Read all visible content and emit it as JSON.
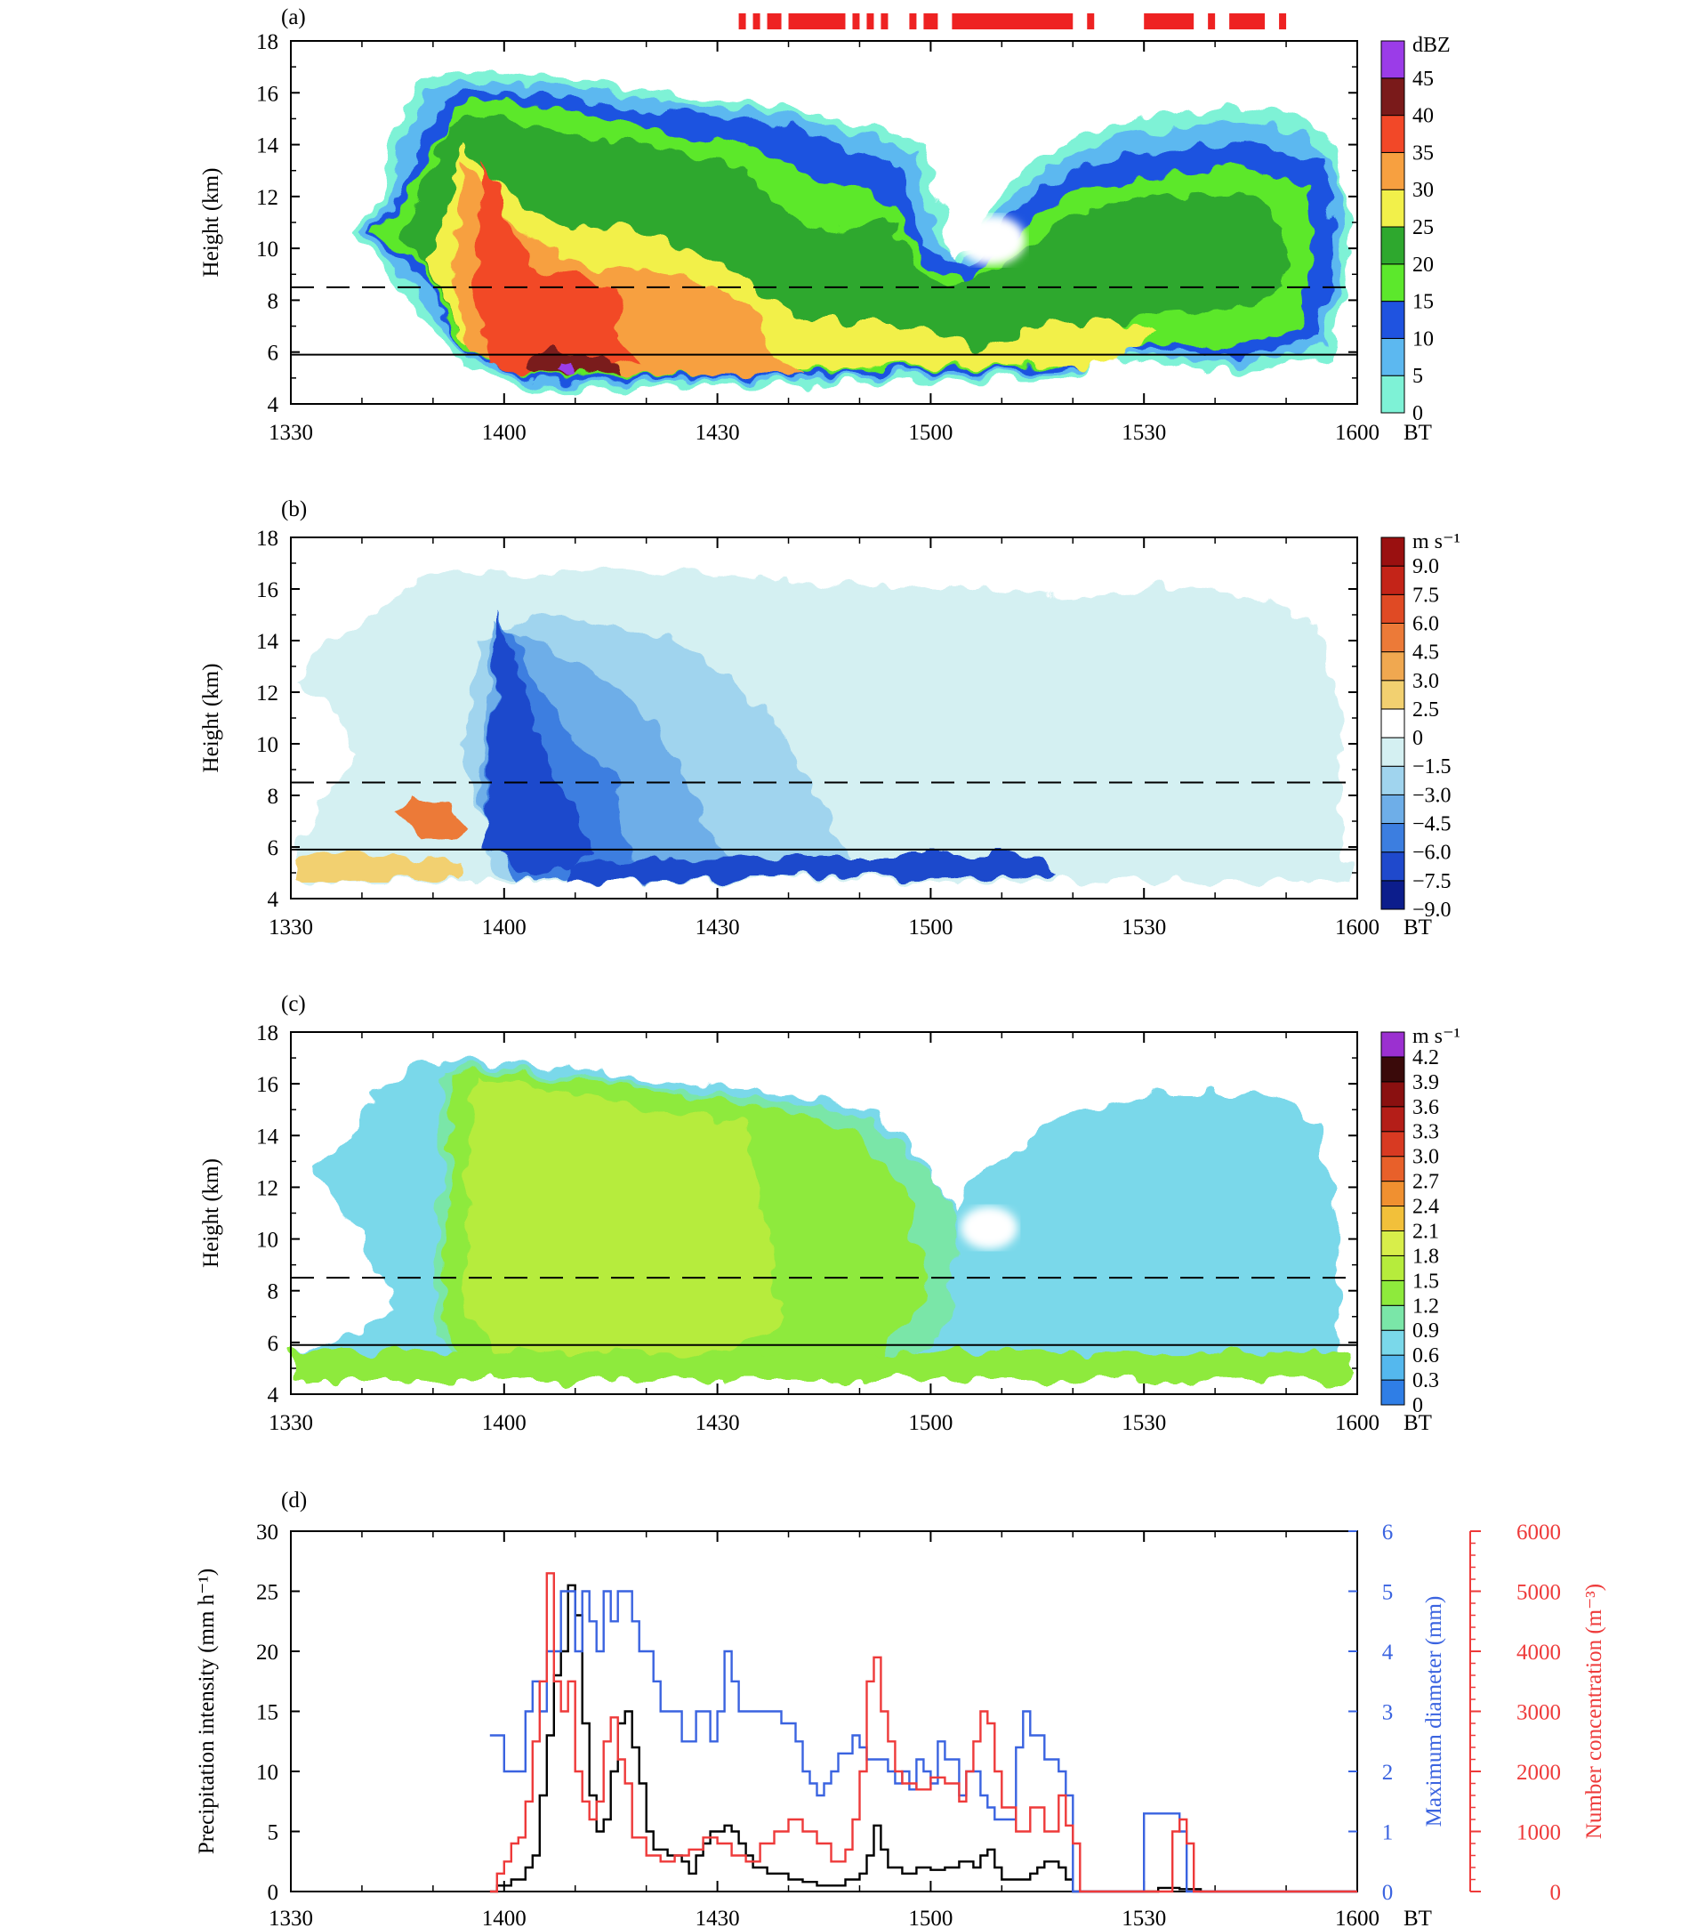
{
  "figure": {
    "time_axis": {
      "ticks": [
        "1330",
        "1400",
        "1430",
        "1500",
        "1530",
        "1600"
      ],
      "tick_minutes": [
        810,
        840,
        870,
        900,
        930,
        960
      ],
      "range_minutes": [
        810,
        960
      ],
      "unit": "BT"
    },
    "height_axis": {
      "label": "Height (km)",
      "ticks": [
        "4",
        "6",
        "8",
        "10",
        "12",
        "14",
        "16",
        "18"
      ],
      "range": [
        4,
        18
      ]
    },
    "reference_lines": {
      "solid_km": 5.9,
      "dashed_km": 8.5
    }
  },
  "chart_data": [
    {
      "panel": "(a)",
      "type": "heatmap",
      "title": "",
      "xlabel": "",
      "ylabel": "Height (km)",
      "xlim": [
        810,
        960
      ],
      "ylim": [
        4,
        18
      ],
      "colorbar_unit": "dBZ",
      "levels": [
        "0",
        "5",
        "10",
        "15",
        "20",
        "25",
        "30",
        "35",
        "40",
        "45"
      ],
      "colors": [
        "#7ef2d6",
        "#5cb8f0",
        "#1f53e0",
        "#5ce82c",
        "#2ea82e",
        "#f2f04a",
        "#f7a040",
        "#f24828",
        "#7a1a1a",
        "#9b3ce8"
      ],
      "precip_bars_minutes": [
        [
          873,
          874
        ],
        [
          875,
          876
        ],
        [
          877,
          879
        ],
        [
          880,
          888
        ],
        [
          889,
          890
        ],
        [
          891,
          892
        ],
        [
          893,
          894
        ],
        [
          897,
          898
        ],
        [
          899,
          901
        ],
        [
          903,
          920
        ],
        [
          922,
          923
        ],
        [
          930,
          937
        ],
        [
          939,
          940
        ],
        [
          942,
          947
        ],
        [
          949,
          950
        ]
      ],
      "precip_bar_color": "#ee2222",
      "core_note": "maximum reflectivity near 1400-1415 BT below 8 km"
    },
    {
      "panel": "(b)",
      "type": "heatmap",
      "title": "",
      "xlabel": "",
      "ylabel": "Height (km)",
      "xlim": [
        810,
        960
      ],
      "ylim": [
        4,
        18
      ],
      "colorbar_unit": "m s⁻¹",
      "levels": [
        "−9.0",
        "−7.5",
        "−6.0",
        "−4.5",
        "−3.0",
        "−1.5",
        "0",
        "2.5",
        "3.0",
        "4.5",
        "6.0",
        "7.5",
        "9.0"
      ],
      "colors": [
        "#0c1d8c",
        "#1f49cc",
        "#3c7ee0",
        "#6eaee8",
        "#a0d4ee",
        "#d4f0f2",
        "#ffffff",
        "#f2d070",
        "#f0a850",
        "#ec7a38",
        "#e04a24",
        "#c42418",
        "#9a1010"
      ]
    },
    {
      "panel": "(c)",
      "type": "heatmap",
      "title": "",
      "xlabel": "",
      "ylabel": "Height (km)",
      "xlim": [
        810,
        960
      ],
      "ylim": [
        4,
        18
      ],
      "colorbar_unit": "m s⁻¹",
      "levels": [
        "0",
        "0.3",
        "0.6",
        "0.9",
        "1.2",
        "1.5",
        "1.8",
        "2.1",
        "2.4",
        "2.7",
        "3.0",
        "3.3",
        "3.6",
        "3.9",
        "4.2"
      ],
      "colors": [
        "#2f7ee6",
        "#54b8ee",
        "#7ad8ea",
        "#7ae6a8",
        "#8eea3c",
        "#b6ec3c",
        "#d8ee4a",
        "#f2c03a",
        "#f09030",
        "#e8602a",
        "#d83a22",
        "#b41e18",
        "#8a1010",
        "#3a0a0a",
        "#9b30d0"
      ]
    },
    {
      "panel": "(d)",
      "type": "line",
      "title": "",
      "xlabel": "",
      "xlim": [
        810,
        960
      ],
      "x_ticks": [
        "1330",
        "1400",
        "1430",
        "1500",
        "1530",
        "1600"
      ],
      "axes": {
        "left": {
          "label": "Precipitation intensity (mm h⁻¹)",
          "ticks": [
            "0",
            "5",
            "10",
            "15",
            "20",
            "25",
            "30"
          ],
          "range": [
            0,
            30
          ]
        },
        "right_blue": {
          "label": "Maximum diameter (mm)",
          "ticks": [
            "0",
            "1",
            "2",
            "3",
            "4",
            "5",
            "6"
          ],
          "range": [
            0,
            6
          ],
          "color": "#3a63e0"
        },
        "right_red": {
          "label": "Number concentration (m⁻³)",
          "ticks": [
            "0",
            "1000",
            "2000",
            "3000",
            "4000",
            "5000",
            "6000"
          ],
          "range": [
            0,
            6000
          ],
          "color": "#ee3a3a"
        }
      },
      "series": [
        {
          "color": "#000000",
          "axis": "left",
          "points": [
            [
              838,
              0
            ],
            [
              839,
              0.5
            ],
            [
              841,
              1
            ],
            [
              843,
              2
            ],
            [
              844,
              3
            ],
            [
              845,
              8
            ],
            [
              846,
              13
            ],
            [
              847,
              18
            ],
            [
              848,
              20
            ],
            [
              849,
              25.5
            ],
            [
              850,
              23
            ],
            [
              851,
              14
            ],
            [
              852,
              8
            ],
            [
              853,
              5
            ],
            [
              854,
              6
            ],
            [
              855,
              10
            ],
            [
              856,
              14
            ],
            [
              857,
              15
            ],
            [
              858,
              12
            ],
            [
              859,
              9
            ],
            [
              860,
              5
            ],
            [
              861,
              3.5
            ],
            [
              863,
              3
            ],
            [
              865,
              2.5
            ],
            [
              866,
              1.5
            ],
            [
              867,
              3
            ],
            [
              868,
              4
            ],
            [
              869,
              5
            ],
            [
              870,
              5
            ],
            [
              871,
              5.5
            ],
            [
              872,
              5
            ],
            [
              873,
              4
            ],
            [
              874,
              3
            ],
            [
              875,
              2
            ],
            [
              877,
              1.5
            ],
            [
              880,
              1
            ],
            [
              882,
              0.8
            ],
            [
              884,
              0.5
            ],
            [
              888,
              1
            ],
            [
              890,
              1.5
            ],
            [
              891,
              3
            ],
            [
              892,
              5.5
            ],
            [
              893,
              3.5
            ],
            [
              894,
              2
            ],
            [
              896,
              1.5
            ],
            [
              898,
              2
            ],
            [
              900,
              1.8
            ],
            [
              902,
              2
            ],
            [
              904,
              2.5
            ],
            [
              906,
              2
            ],
            [
              907,
              3
            ],
            [
              908,
              3.5
            ],
            [
              909,
              2
            ],
            [
              910,
              1
            ],
            [
              912,
              1
            ],
            [
              914,
              1.5
            ],
            [
              915,
              2
            ],
            [
              916,
              2.5
            ],
            [
              918,
              2
            ],
            [
              919,
              1
            ],
            [
              920,
              0
            ],
            [
              926,
              0
            ],
            [
              932,
              0.3
            ],
            [
              935,
              0.2
            ],
            [
              938,
              0
            ],
            [
              960,
              0
            ]
          ]
        },
        {
          "color": "#3a63e0",
          "axis": "right_blue",
          "points": [
            [
              838,
              2.6
            ],
            [
              839,
              2.6
            ],
            [
              840,
              2
            ],
            [
              841,
              2
            ],
            [
              843,
              3
            ],
            [
              844,
              3.5
            ],
            [
              845,
              3
            ],
            [
              846,
              4
            ],
            [
              848,
              5
            ],
            [
              850,
              4
            ],
            [
              851,
              5
            ],
            [
              852,
              4.5
            ],
            [
              853,
              4
            ],
            [
              854,
              5
            ],
            [
              855,
              4.5
            ],
            [
              856,
              5
            ],
            [
              858,
              4.5
            ],
            [
              859,
              4
            ],
            [
              861,
              3.5
            ],
            [
              862,
              3
            ],
            [
              864,
              3
            ],
            [
              865,
              2.5
            ],
            [
              867,
              3
            ],
            [
              869,
              2.5
            ],
            [
              870,
              3
            ],
            [
              871,
              4
            ],
            [
              872,
              3.5
            ],
            [
              873,
              3
            ],
            [
              875,
              3
            ],
            [
              877,
              3
            ],
            [
              879,
              2.8
            ],
            [
              880,
              2.8
            ],
            [
              881,
              2.5
            ],
            [
              882,
              2
            ],
            [
              883,
              1.8
            ],
            [
              884,
              1.6
            ],
            [
              885,
              1.8
            ],
            [
              886,
              2
            ],
            [
              887,
              2.3
            ],
            [
              888,
              2.3
            ],
            [
              889,
              2.6
            ],
            [
              890,
              2.4
            ],
            [
              891,
              2.2
            ],
            [
              892,
              2.2
            ],
            [
              894,
              2
            ],
            [
              895,
              1.8
            ],
            [
              896,
              2
            ],
            [
              897,
              1.7
            ],
            [
              898,
              2.2
            ],
            [
              899,
              2
            ],
            [
              900,
              1.8
            ],
            [
              901,
              2.5
            ],
            [
              902,
              2.2
            ],
            [
              904,
              1.6
            ],
            [
              905,
              2
            ],
            [
              906,
              2
            ],
            [
              907,
              1.6
            ],
            [
              908,
              1.4
            ],
            [
              909,
              1.2
            ],
            [
              910,
              1.2
            ],
            [
              912,
              2.4
            ],
            [
              913,
              3
            ],
            [
              914,
              2.6
            ],
            [
              916,
              2.2
            ],
            [
              918,
              2
            ],
            [
              919,
              1.6
            ],
            [
              920,
              0
            ],
            [
              929,
              0
            ],
            [
              930,
              1.3
            ],
            [
              934,
              1.3
            ],
            [
              935,
              1
            ],
            [
              936,
              0
            ],
            [
              960,
              0
            ]
          ]
        },
        {
          "color": "#ee3a3a",
          "axis": "right_red",
          "points": [
            [
              838,
              0
            ],
            [
              839,
              300
            ],
            [
              840,
              500
            ],
            [
              841,
              800
            ],
            [
              842,
              900
            ],
            [
              843,
              1500
            ],
            [
              844,
              2500
            ],
            [
              845,
              3500
            ],
            [
              846,
              5300
            ],
            [
              847,
              3500
            ],
            [
              848,
              3000
            ],
            [
              849,
              3500
            ],
            [
              850,
              2000
            ],
            [
              851,
              1500
            ],
            [
              852,
              1200
            ],
            [
              853,
              1500
            ],
            [
              854,
              2500
            ],
            [
              855,
              2900
            ],
            [
              856,
              2200
            ],
            [
              857,
              1800
            ],
            [
              858,
              900
            ],
            [
              860,
              600
            ],
            [
              862,
              500
            ],
            [
              864,
              600
            ],
            [
              866,
              700
            ],
            [
              868,
              900
            ],
            [
              870,
              800
            ],
            [
              872,
              600
            ],
            [
              874,
              500
            ],
            [
              876,
              800
            ],
            [
              878,
              1000
            ],
            [
              880,
              1200
            ],
            [
              882,
              1000
            ],
            [
              884,
              800
            ],
            [
              886,
              500
            ],
            [
              888,
              700
            ],
            [
              889,
              1200
            ],
            [
              890,
              2000
            ],
            [
              891,
              3500
            ],
            [
              892,
              3900
            ],
            [
              893,
              3000
            ],
            [
              894,
              2500
            ],
            [
              895,
              2000
            ],
            [
              896,
              1800
            ],
            [
              898,
              1700
            ],
            [
              900,
              1900
            ],
            [
              902,
              1800
            ],
            [
              904,
              1500
            ],
            [
              905,
              2000
            ],
            [
              906,
              2500
            ],
            [
              907,
              3000
            ],
            [
              908,
              2800
            ],
            [
              909,
              2000
            ],
            [
              910,
              1400
            ],
            [
              912,
              1000
            ],
            [
              914,
              1400
            ],
            [
              916,
              1000
            ],
            [
              918,
              1600
            ],
            [
              919,
              1100
            ],
            [
              920,
              800
            ],
            [
              921,
              0
            ],
            [
              933,
              0
            ],
            [
              934,
              1000
            ],
            [
              935,
              1200
            ],
            [
              936,
              800
            ],
            [
              937,
              0
            ],
            [
              960,
              0
            ]
          ]
        }
      ]
    }
  ]
}
